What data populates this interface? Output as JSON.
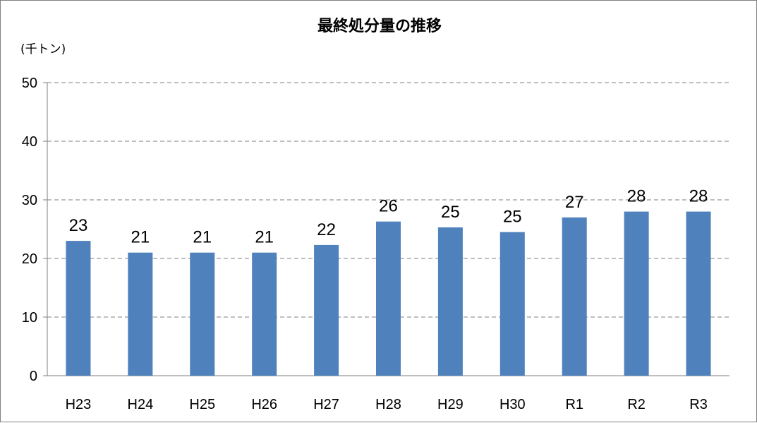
{
  "chart_data": {
    "type": "bar",
    "title": "最終処分量の推移",
    "unit_label": "(千トン)",
    "categories": [
      "H23",
      "H24",
      "H25",
      "H26",
      "H27",
      "H28",
      "H29",
      "H30",
      "R1",
      "R2",
      "R3"
    ],
    "values": [
      23.0,
      21.0,
      21.0,
      21.0,
      22.3,
      26.3,
      25.3,
      24.5,
      27.0,
      28.0,
      28.0
    ],
    "data_labels": [
      "23",
      "21",
      "21",
      "21",
      "22",
      "26",
      "25",
      "25",
      "27",
      "28",
      "28"
    ],
    "ylim": [
      0,
      50
    ],
    "yticks": [
      "0",
      "10",
      "20",
      "30",
      "40",
      "50"
    ],
    "grid": "horizontal-dashed",
    "bar_color": "#4f81bd",
    "legend": "none"
  }
}
